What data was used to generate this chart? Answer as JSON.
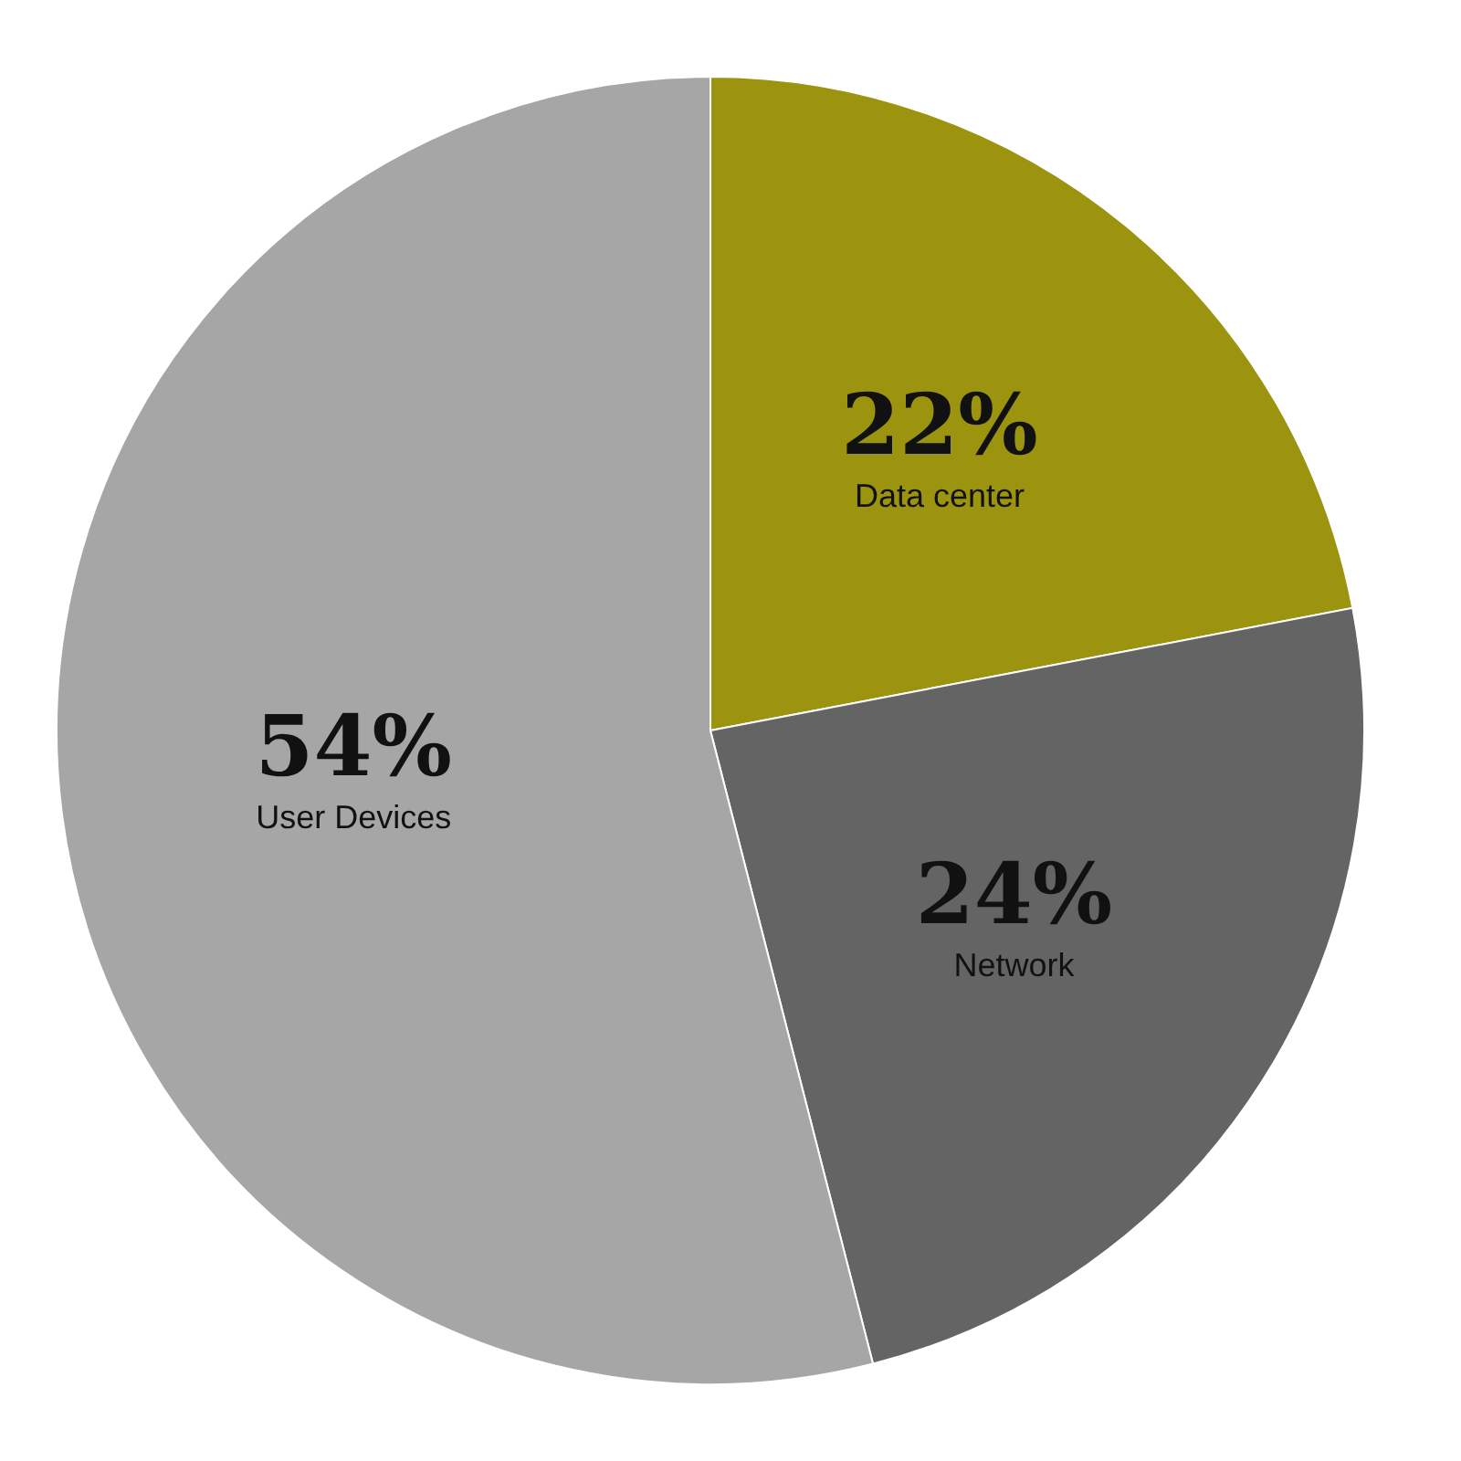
{
  "chart_data": {
    "type": "pie",
    "categories": [
      "Data center",
      "Network",
      "User Devices"
    ],
    "values": [
      22,
      24,
      54
    ],
    "colors": [
      "#9c930f",
      "#636463",
      "#a6a6a6"
    ],
    "value_labels": [
      "22%",
      "24%",
      "54%"
    ],
    "legend": false
  }
}
